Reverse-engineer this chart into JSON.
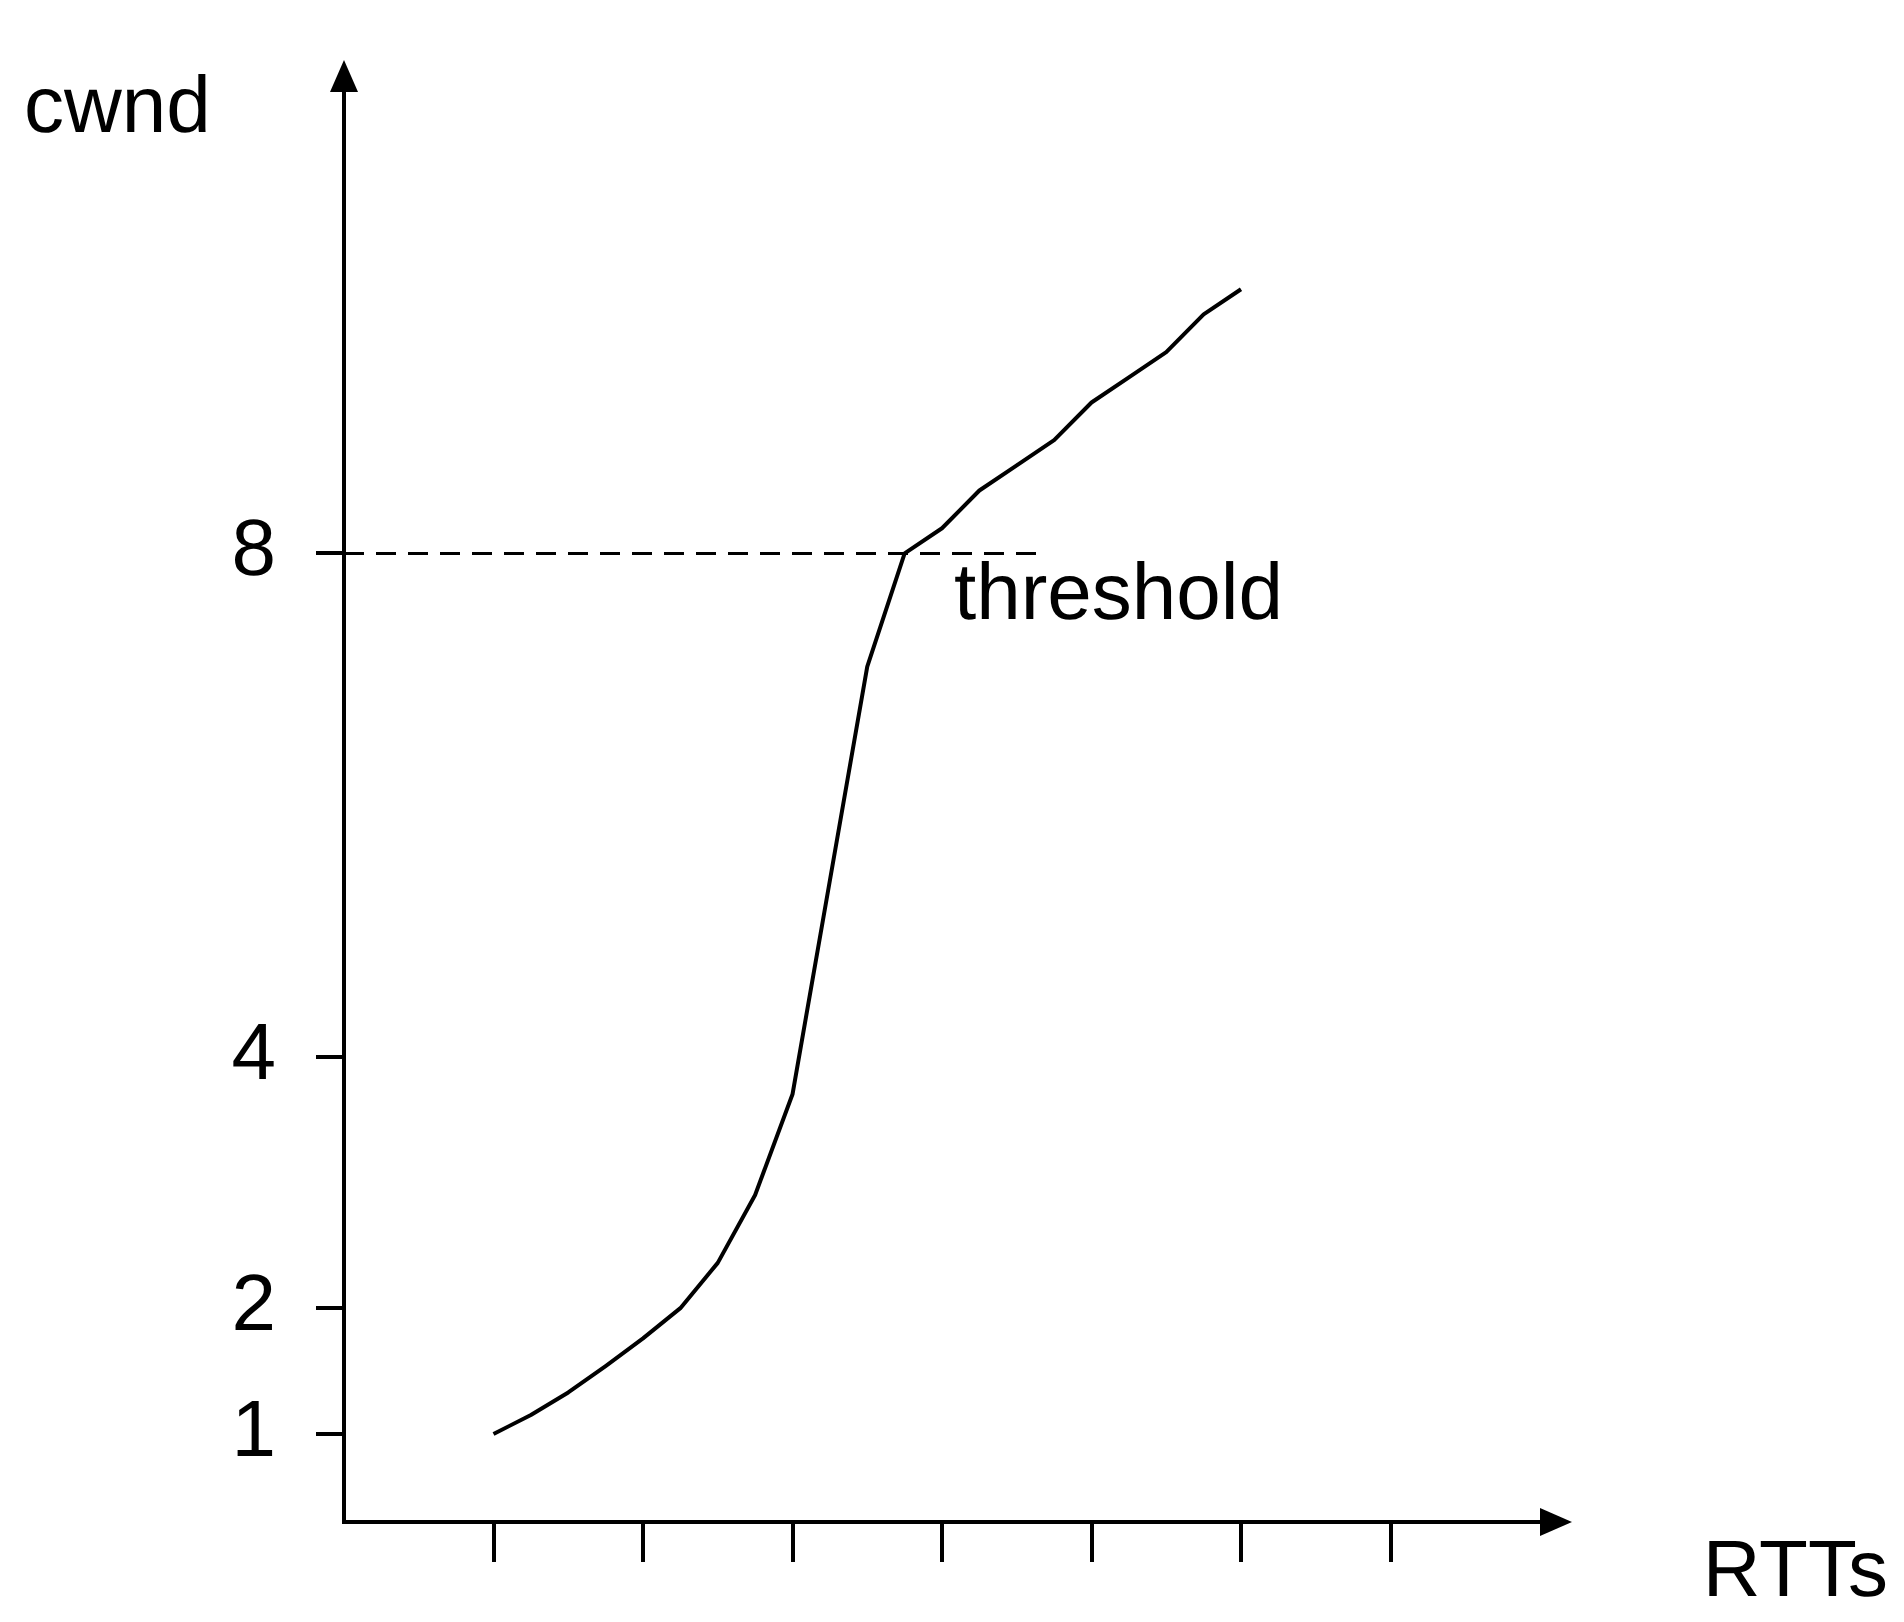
{
  "chart_data": {
    "type": "line",
    "xlabel": "RTTs",
    "ylabel": "cwnd",
    "categories": [
      null,
      null,
      null,
      null,
      null,
      null,
      null,
      null,
      null,
      null,
      null,
      null,
      null,
      null,
      null,
      null,
      null,
      null,
      null,
      null,
      null,
      null,
      null,
      null,
      null,
      null,
      null,
      null,
      null,
      null,
      null,
      null,
      null
    ],
    "values": [
      null,
      null,
      null,
      null,
      1,
      1.15,
      1.33,
      1.54,
      1.76,
      2,
      2.36,
      2.9,
      3.7,
      5.4,
      7.1,
      8,
      8.2,
      8.5,
      8.7,
      8.9,
      9.2,
      9.4,
      9.6,
      9.9,
      10.1,
      null,
      null,
      null,
      null,
      null,
      null,
      null,
      null
    ],
    "color": "#000000",
    "ylim": [
      0.3,
      11.7
    ],
    "yticks": [
      1,
      2,
      4,
      8
    ],
    "ref_lines": [
      {
        "axis": "y",
        "value": 8,
        "label": "threshold",
        "line_style": "dashed",
        "color": "#000000"
      }
    ],
    "grid": false,
    "legend": false,
    "marker": "none"
  }
}
